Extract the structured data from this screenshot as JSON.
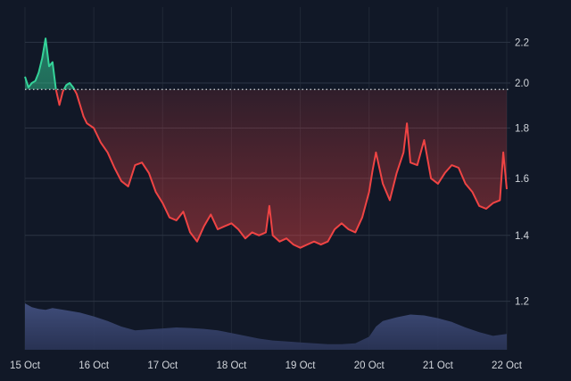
{
  "chart_data": {
    "type": "area",
    "title": "",
    "xlabel": "",
    "ylabel": "",
    "x_ticks": [
      "15 Oct",
      "16 Oct",
      "17 Oct",
      "18 Oct",
      "19 Oct",
      "20 Oct",
      "21 Oct",
      "22 Oct"
    ],
    "y_ticks": [
      "1.2",
      "1.4",
      "1.6",
      "1.8",
      "2.0",
      "2.2"
    ],
    "y_tick_values": [
      1.2,
      1.4,
      1.6,
      1.8,
      2.0,
      2.2
    ],
    "y_scale": "log",
    "ylim": [
      1.08,
      2.32
    ],
    "xlim_days": [
      15.0,
      22.0
    ],
    "baseline": 1.97,
    "grid": true,
    "legend": "none",
    "colors": {
      "above_line": "#34d399",
      "below_line": "#ef4444",
      "volume": "#3b4a75",
      "background": "#111827",
      "grid": "#2c3444",
      "baseline": "#d1d5db"
    },
    "series": [
      {
        "x": [
          15.0,
          15.05,
          15.1,
          15.15,
          15.2,
          15.25,
          15.3,
          15.35,
          15.4,
          15.45,
          15.5,
          15.55,
          15.6,
          15.65,
          15.7,
          15.75,
          15.8,
          15.85,
          15.9,
          16.0,
          16.1,
          16.2,
          16.3,
          16.4,
          16.5,
          16.6,
          16.7,
          16.8,
          16.9,
          17.0,
          17.1,
          17.2,
          17.3,
          17.4,
          17.5,
          17.6,
          17.7,
          17.8,
          17.9,
          18.0,
          18.1,
          18.2,
          18.3,
          18.4,
          18.5,
          18.55,
          18.6,
          18.7,
          18.8,
          18.9,
          19.0,
          19.1,
          19.2,
          19.3,
          19.4,
          19.5,
          19.6,
          19.7,
          19.8,
          19.9,
          20.0,
          20.05,
          20.1,
          20.2,
          20.3,
          20.4,
          20.5,
          20.55,
          20.6,
          20.7,
          20.8,
          20.9,
          21.0,
          21.1,
          21.2,
          21.3,
          21.4,
          21.5,
          21.6,
          21.7,
          21.8,
          21.9,
          21.95,
          22.0
        ],
        "y": [
          2.03,
          1.98,
          2.0,
          2.01,
          2.05,
          2.12,
          2.22,
          2.08,
          2.1,
          1.97,
          1.9,
          1.96,
          1.99,
          2.0,
          1.98,
          1.95,
          1.9,
          1.85,
          1.82,
          1.8,
          1.74,
          1.7,
          1.64,
          1.59,
          1.57,
          1.65,
          1.66,
          1.62,
          1.55,
          1.51,
          1.46,
          1.45,
          1.48,
          1.41,
          1.38,
          1.43,
          1.47,
          1.42,
          1.43,
          1.44,
          1.42,
          1.39,
          1.41,
          1.4,
          1.41,
          1.5,
          1.4,
          1.38,
          1.39,
          1.37,
          1.36,
          1.37,
          1.38,
          1.37,
          1.38,
          1.42,
          1.44,
          1.42,
          1.41,
          1.46,
          1.55,
          1.63,
          1.7,
          1.58,
          1.52,
          1.62,
          1.7,
          1.82,
          1.66,
          1.65,
          1.75,
          1.6,
          1.58,
          1.62,
          1.65,
          1.64,
          1.58,
          1.55,
          1.5,
          1.49,
          1.51,
          1.52,
          1.7,
          1.56
        ]
      }
    ],
    "volume": {
      "x": [
        15.0,
        15.1,
        15.2,
        15.3,
        15.4,
        15.6,
        15.8,
        16.0,
        16.2,
        16.4,
        16.6,
        16.8,
        17.0,
        17.2,
        17.4,
        17.6,
        17.8,
        18.0,
        18.2,
        18.4,
        18.6,
        18.8,
        19.0,
        19.2,
        19.4,
        19.6,
        19.8,
        20.0,
        20.1,
        20.2,
        20.4,
        20.6,
        20.8,
        21.0,
        21.2,
        21.4,
        21.6,
        21.8,
        22.0
      ],
      "values": [
        1.0,
        0.92,
        0.88,
        0.86,
        0.9,
        0.85,
        0.8,
        0.72,
        0.62,
        0.5,
        0.42,
        0.44,
        0.46,
        0.48,
        0.47,
        0.45,
        0.42,
        0.36,
        0.3,
        0.24,
        0.2,
        0.18,
        0.16,
        0.14,
        0.12,
        0.12,
        0.14,
        0.28,
        0.5,
        0.62,
        0.7,
        0.76,
        0.74,
        0.68,
        0.6,
        0.48,
        0.38,
        0.3,
        0.34
      ]
    }
  }
}
